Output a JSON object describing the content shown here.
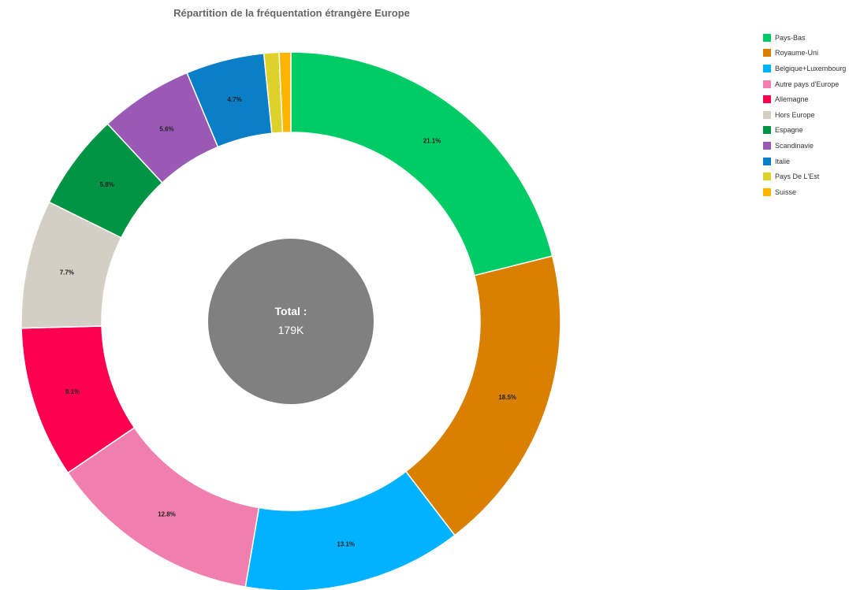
{
  "chart_data": {
    "type": "pie",
    "title": "Répartition de la fréquentation étrangère Europe",
    "categories": [
      "Pays-Bas",
      "Royaume-Uni",
      "Belgique+Luxembourg",
      "Autre pays d'Europe",
      "Allemagne",
      "Hors Europe",
      "Espagne",
      "Scandinavie",
      "Italie",
      "Pays De L'Est",
      "Suisse"
    ],
    "values": [
      21.1,
      18.5,
      13.1,
      12.8,
      9.1,
      7.7,
      5.8,
      5.6,
      4.7,
      0.9,
      0.7
    ],
    "labels": [
      "21.1%",
      "18.5%",
      "13.1%",
      "12.8%",
      "9.1%",
      "7.7%",
      "5.8%",
      "5.6%",
      "4.7%",
      "",
      ""
    ],
    "colors": [
      "#00cc66",
      "#d98000",
      "#00b2ff",
      "#f07fb0",
      "#ff0050",
      "#d4cfc4",
      "#009444",
      "#9b59b6",
      "#0a7fc8",
      "#ddd12a",
      "#ffb400"
    ],
    "legend": "right",
    "center": {
      "title": "Total :",
      "value": "179K",
      "color": "#808080"
    }
  }
}
